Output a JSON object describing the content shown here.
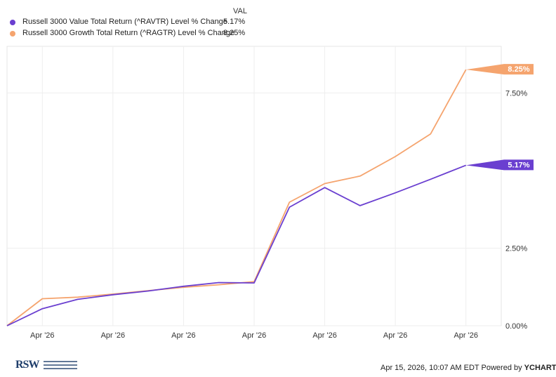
{
  "legend": {
    "header": "VAL",
    "entries": [
      {
        "name": "Russell 3000 Value Total Return (^RAVTR) Level % Change",
        "value": "5.17%",
        "color": "#6a3fd0"
      },
      {
        "name": "Russell 3000 Growth Total Return (^RAGTR) Level % Change",
        "value": "8.25%",
        "color": "#f5a46e"
      }
    ]
  },
  "chart_data": {
    "type": "line",
    "x": [
      0,
      1,
      2,
      3,
      4,
      5,
      6,
      7,
      8,
      9,
      10,
      11,
      12,
      13,
      14
    ],
    "x_tick_labels": [
      "Apr '26",
      "Apr '26",
      "Apr '26",
      "Apr '26",
      "Apr '26",
      "Apr '26",
      "Apr '26"
    ],
    "x_tick_positions": [
      1,
      3,
      5,
      7,
      9,
      11,
      13
    ],
    "y_tick_labels": [
      "0.00%",
      "2.50%",
      "7.50%"
    ],
    "y_tick_values": [
      0,
      2.5,
      7.5
    ],
    "ylim": [
      0,
      9
    ],
    "grid": true,
    "series": [
      {
        "name": "Russell 3000 Value Total Return (^RAVTR) Level % Change",
        "values": [
          0,
          0.55,
          0.85,
          1.0,
          1.12,
          1.27,
          1.39,
          1.38,
          3.82,
          4.45,
          3.87,
          4.28,
          4.72,
          5.17,
          null
        ],
        "end_label": "5.17%",
        "color": "#6a3fd0"
      },
      {
        "name": "Russell 3000 Growth Total Return (^RAGTR) Level % Change",
        "values": [
          0,
          0.87,
          0.92,
          1.02,
          1.13,
          1.24,
          1.32,
          1.42,
          3.98,
          4.58,
          4.82,
          5.45,
          6.18,
          8.25,
          null
        ],
        "end_label": "8.25%",
        "color": "#f5a46e"
      }
    ]
  },
  "footer": {
    "timestamp": "Apr 15, 2026, 10:07 AM EDT",
    "powered_by": "Powered by",
    "brand": "YCHARTS"
  },
  "logo": {
    "text": "RSW"
  }
}
